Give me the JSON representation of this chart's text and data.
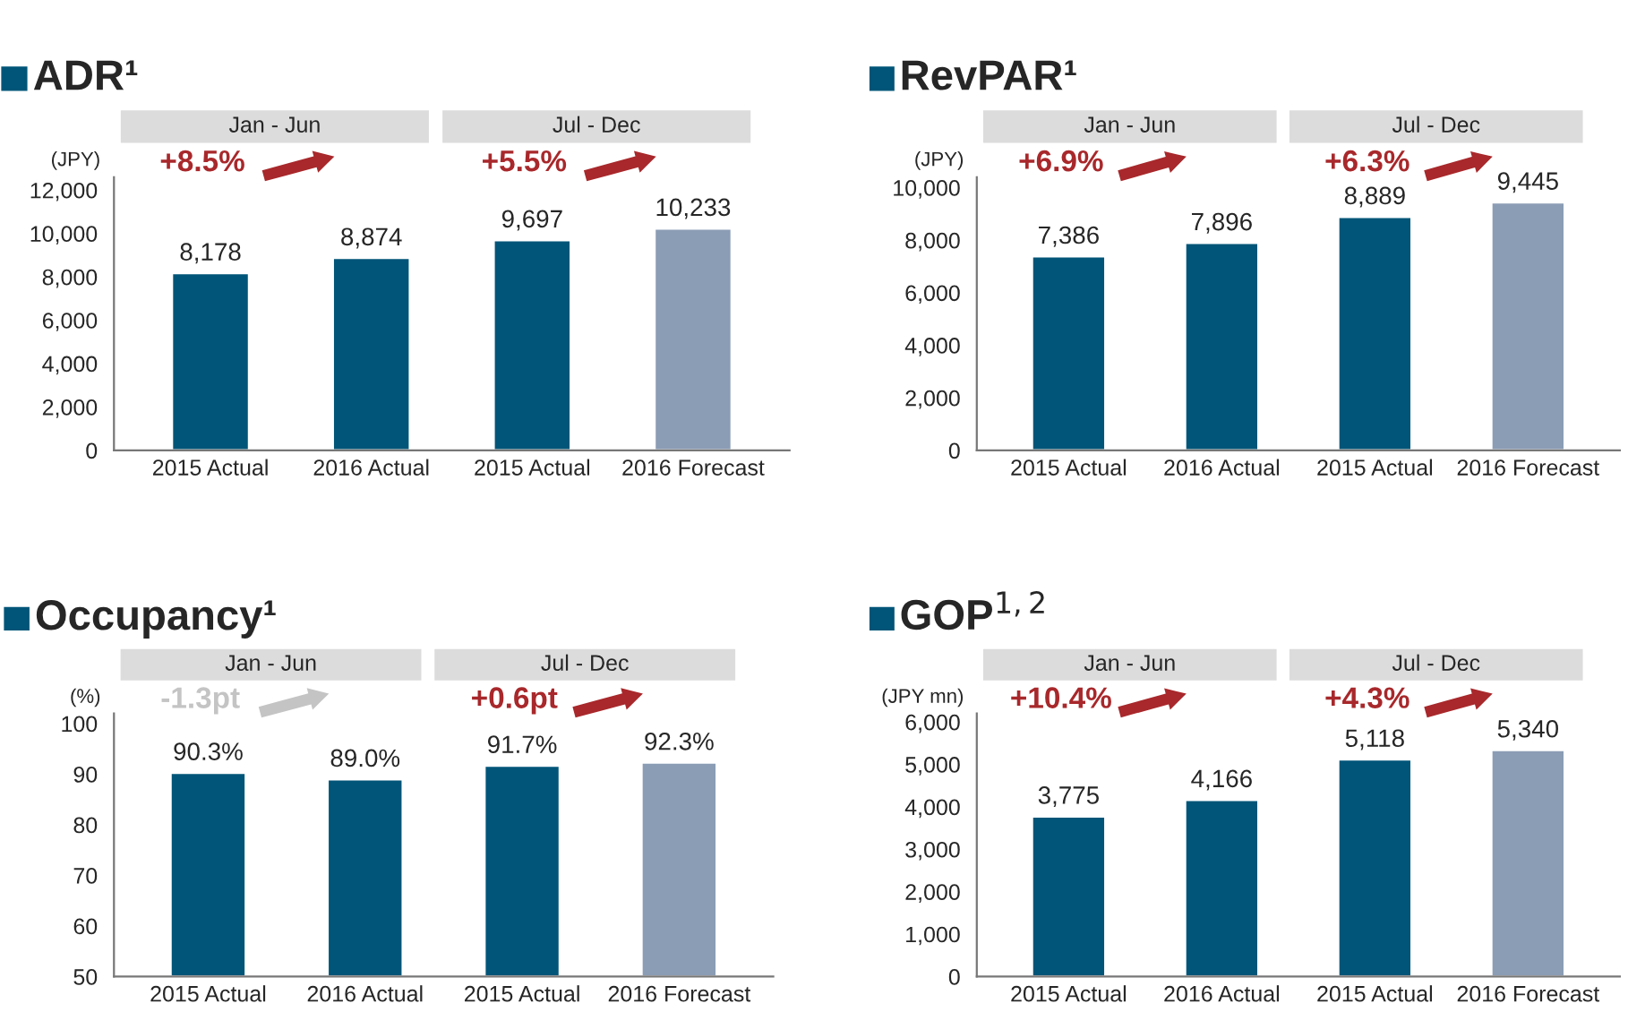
{
  "chart_data": [
    {
      "type": "bar",
      "title": "ADR¹",
      "ylabel": "(JPY)",
      "categories": [
        "2015 Actual",
        "2016 Actual",
        "2015 Actual",
        "2016 Forecast"
      ],
      "values": [
        8178,
        8874,
        9697,
        10233
      ],
      "colors": [
        "#005578",
        "#005578",
        "#005578",
        "#8b9db5"
      ],
      "value_labels": [
        "8,178",
        "8,874",
        "9,697",
        "10,233"
      ],
      "ylim": [
        0,
        12600
      ],
      "yticks": [
        {
          "value": 0,
          "label": "0"
        },
        {
          "value": 2000,
          "label": "2,000"
        },
        {
          "value": 4000,
          "label": "4,000"
        },
        {
          "value": 6000,
          "label": "6,000"
        },
        {
          "value": 8000,
          "label": "8,000"
        },
        {
          "value": 10000,
          "label": "10,000"
        },
        {
          "value": 12000,
          "label": "12,000"
        }
      ],
      "annotations": [
        "Jan - Jun",
        "Jul - Dec",
        "+8.5%",
        "+5.5%"
      ]
    },
    {
      "type": "bar",
      "title": "RevPAR¹",
      "ylabel": "(JPY)",
      "categories": [
        "2015 Actual",
        "2016 Actual",
        "2015 Actual",
        "2016 Forecast"
      ],
      "values": [
        7386,
        7896,
        8889,
        9445
      ],
      "colors": [
        "#005578",
        "#005578",
        "#005578",
        "#8b9db5"
      ],
      "value_labels": [
        "7,386",
        "7,896",
        "8,889",
        "9,445"
      ],
      "ylim": [
        0,
        10400
      ],
      "yticks": [
        {
          "value": 0,
          "label": "0"
        },
        {
          "value": 2000,
          "label": "2,000"
        },
        {
          "value": 4000,
          "label": "4,000"
        },
        {
          "value": 6000,
          "label": "6,000"
        },
        {
          "value": 8000,
          "label": "8,000"
        },
        {
          "value": 10000,
          "label": "10,000"
        }
      ],
      "annotations": [
        "Jan - Jun",
        "Jul - Dec",
        "+6.9%",
        "+6.3%"
      ]
    },
    {
      "type": "bar",
      "title": "Occupancy¹",
      "ylabel": "(%)",
      "categories": [
        "2015 Actual",
        "2016 Actual",
        "2015 Actual",
        "2016 Forecast"
      ],
      "values": [
        90.3,
        89.0,
        91.7,
        92.3
      ],
      "colors": [
        "#005578",
        "#005578",
        "#005578",
        "#8b9db5"
      ],
      "value_labels": [
        "90.3%",
        "89.0%",
        "91.7%",
        "92.3%"
      ],
      "ylim": [
        50,
        102
      ],
      "yticks": [
        50,
        60,
        70,
        80,
        90,
        100
      ],
      "annotations": [
        "Jan - Jun",
        "Jul - Dec",
        "-1.3pt",
        "+0.6pt"
      ]
    },
    {
      "type": "bar",
      "title": "GOP$^{1,2}$",
      "ylabel": "(JPY mn)",
      "categories": [
        "2015 Actual",
        "2016 Actual",
        "2015 Actual",
        "2016 Forecast"
      ],
      "values": [
        3775,
        4166,
        5118,
        5340
      ],
      "colors": [
        "#005578",
        "#005578",
        "#005578",
        "#8b9db5"
      ],
      "value_labels": [
        "3,775",
        "4,166",
        "5,118",
        "5,340"
      ],
      "ylim": [
        0,
        6200
      ],
      "yticks": [
        {
          "value": 0,
          "label": "0"
        },
        {
          "value": 1000,
          "label": "1,000"
        },
        {
          "value": 2000,
          "label": "2,000"
        },
        {
          "value": 3000,
          "label": "3,000"
        },
        {
          "value": 4000,
          "label": "4,000"
        },
        {
          "value": 5000,
          "label": "5,000"
        },
        {
          "value": 6000,
          "label": "6,000"
        }
      ],
      "annotations": [
        "Jan - Jun",
        "Jul - Dec",
        "+10.4%",
        "+4.3%"
      ]
    }
  ]
}
